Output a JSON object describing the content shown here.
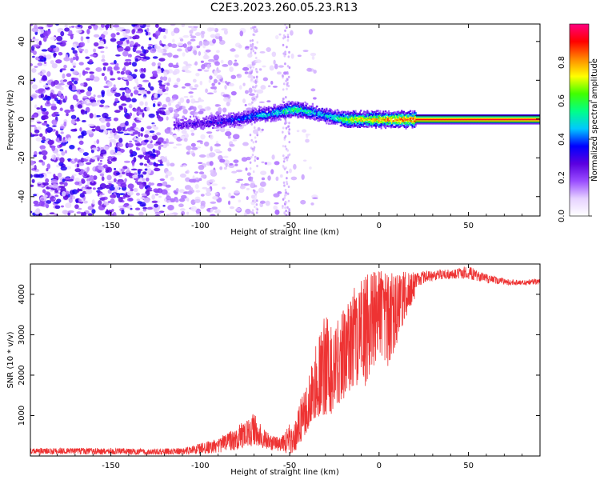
{
  "page": {
    "title": "C2E3.2023.260.05.23.R13"
  },
  "chart_data": [
    {
      "type": "heatmap",
      "xlabel": "Height of straight line (km)",
      "ylabel": "Frequency (Hz)",
      "xlim": [
        -195,
        90
      ],
      "ylim": [
        -50,
        49
      ],
      "xticks": [
        -150,
        -100,
        -50,
        0,
        50
      ],
      "yticks": [
        -40,
        -20,
        0,
        20,
        40
      ],
      "colorbar": {
        "label": "Normalized spectral amplitude",
        "range": [
          0.0,
          1.0
        ],
        "ticks": [
          0.0,
          0.2,
          0.4,
          0.6,
          0.8
        ],
        "colors": [
          "#ffffff",
          "#e6d2ff",
          "#9a4dff",
          "#5a00e0",
          "#0000ff",
          "#00c8ff",
          "#00ff88",
          "#40ff00",
          "#ffff00",
          "#ff8800",
          "#ff0000",
          "#ff0080"
        ]
      },
      "features": {
        "noise_region_km": [
          -195,
          -50
        ],
        "noise_amplitude_range": [
          0.05,
          0.35
        ],
        "signal_ridge": {
          "x_km": [
            -115,
            -100,
            -90,
            -80,
            -70,
            -60,
            -55,
            -50,
            -45,
            -40,
            -35,
            -30,
            -25,
            -20,
            -10,
            0,
            10,
            20,
            90
          ],
          "frequency_hz": [
            -3,
            -2,
            -1,
            0,
            2,
            3,
            4,
            5,
            5,
            4,
            3,
            2,
            1,
            0,
            0,
            0,
            0,
            0,
            0
          ],
          "amplitude": [
            0.25,
            0.3,
            0.35,
            0.4,
            0.45,
            0.5,
            0.55,
            0.6,
            0.6,
            0.55,
            0.5,
            0.5,
            0.55,
            0.7,
            0.8,
            0.85,
            0.9,
            0.95,
            0.98
          ]
        }
      }
    },
    {
      "type": "line",
      "xlabel": "Height of straight line (km)",
      "ylabel": "SNR (10 * v/v)",
      "xlim": [
        -195,
        90
      ],
      "ylim": [
        0,
        4750
      ],
      "xticks": [
        -150,
        -100,
        -50,
        0,
        50
      ],
      "yticks": [
        1000,
        2000,
        3000,
        4000
      ],
      "series": [
        {
          "name": "SNR",
          "color": "#ee3333",
          "envelope_x_km": [
            -195,
            -160,
            -130,
            -110,
            -100,
            -90,
            -80,
            -75,
            -70,
            -65,
            -60,
            -55,
            -50,
            -48,
            -45,
            -40,
            -35,
            -30,
            -25,
            -20,
            -15,
            -10,
            -5,
            0,
            5,
            10,
            15,
            20,
            30,
            40,
            50,
            60,
            70,
            80,
            90
          ],
          "envelope_low": [
            50,
            40,
            30,
            40,
            50,
            80,
            150,
            200,
            250,
            200,
            150,
            100,
            50,
            80,
            200,
            600,
            1000,
            900,
            1100,
            1400,
            1600,
            1500,
            2000,
            2500,
            2200,
            2800,
            3400,
            3900,
            4200,
            4250,
            4200,
            4150,
            4150,
            4150,
            4150
          ],
          "envelope_high": [
            200,
            200,
            180,
            200,
            300,
            450,
            700,
            900,
            1050,
            700,
            500,
            450,
            800,
            650,
            1300,
            1800,
            2800,
            3600,
            3200,
            3700,
            4100,
            4400,
            4600,
            4600,
            4600,
            4600,
            4550,
            4550,
            4600,
            4650,
            4700,
            4500,
            4400,
            4350,
            4400
          ]
        }
      ]
    }
  ]
}
